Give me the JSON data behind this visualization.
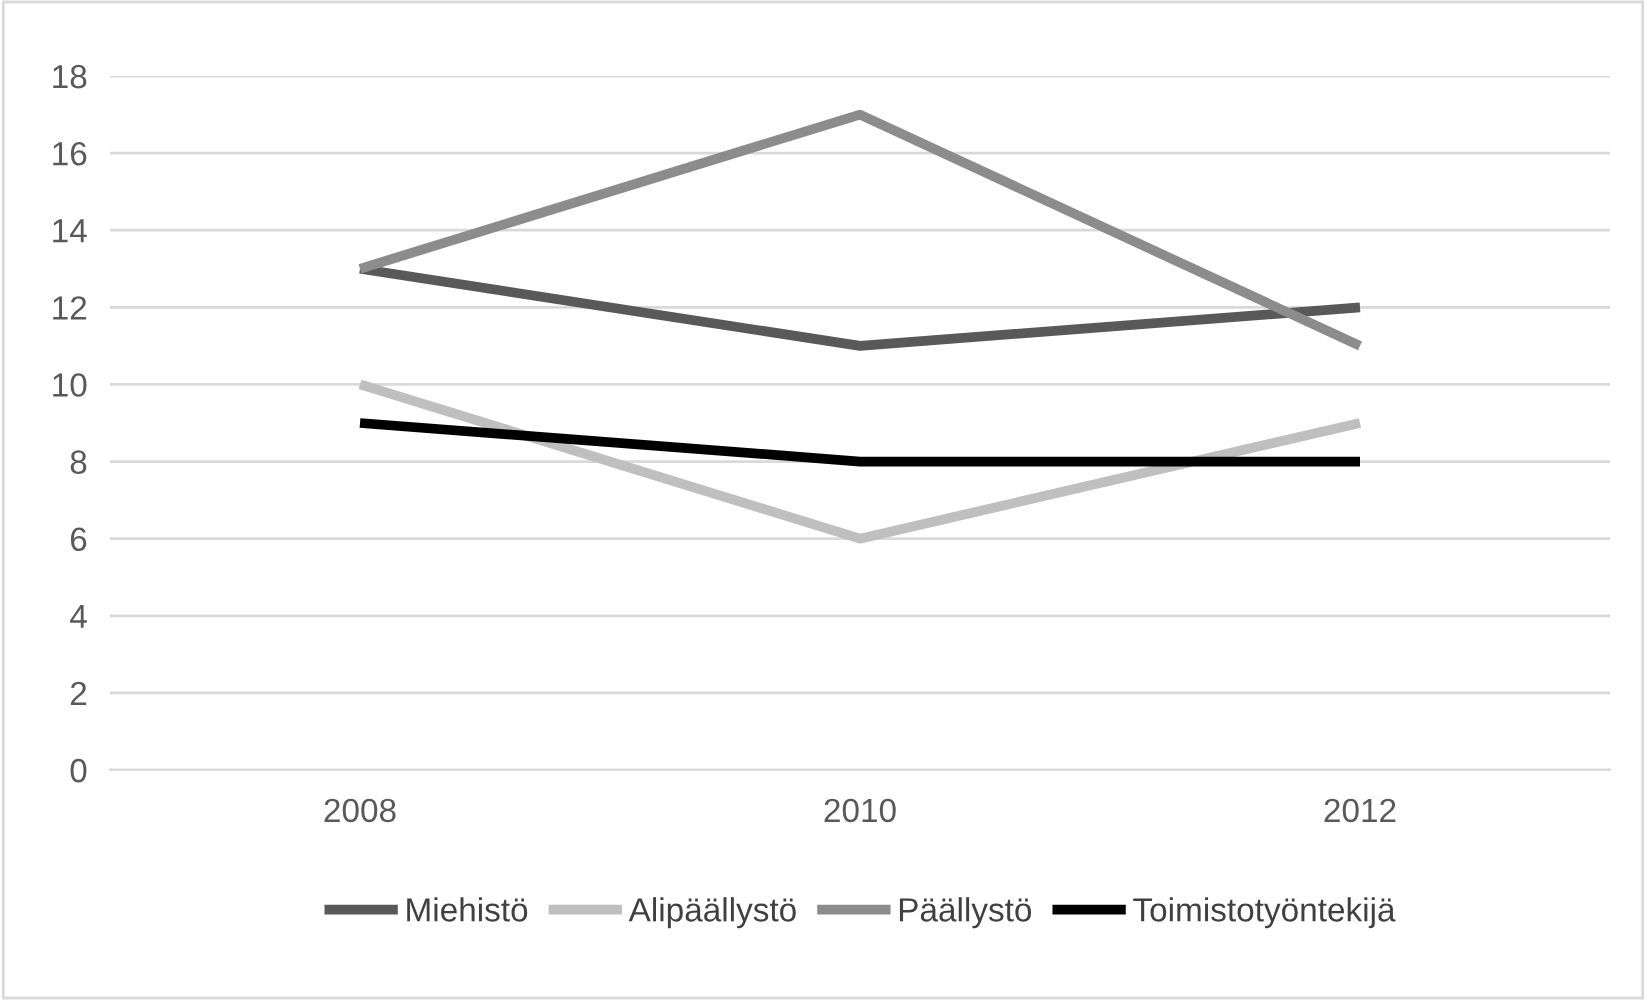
{
  "chart_data": {
    "type": "line",
    "categories": [
      "2008",
      "2010",
      "2012"
    ],
    "series": [
      {
        "name": "Miehistö",
        "color": "#595959",
        "values": [
          13,
          11,
          12
        ]
      },
      {
        "name": "Alipäällystö",
        "color": "#bfbfbf",
        "values": [
          10,
          6,
          9
        ]
      },
      {
        "name": "Päällystö",
        "color": "#8c8c8c",
        "values": [
          13,
          17,
          11
        ]
      },
      {
        "name": "Toimistotyöntekijä",
        "color": "#000000",
        "values": [
          9,
          8,
          8
        ]
      }
    ],
    "ylim": [
      0,
      18
    ],
    "yticks": [
      0,
      2,
      4,
      6,
      8,
      10,
      12,
      14,
      16,
      18
    ],
    "grid": "y",
    "legend": "bottom",
    "marker": "none",
    "line_style": "solid"
  }
}
